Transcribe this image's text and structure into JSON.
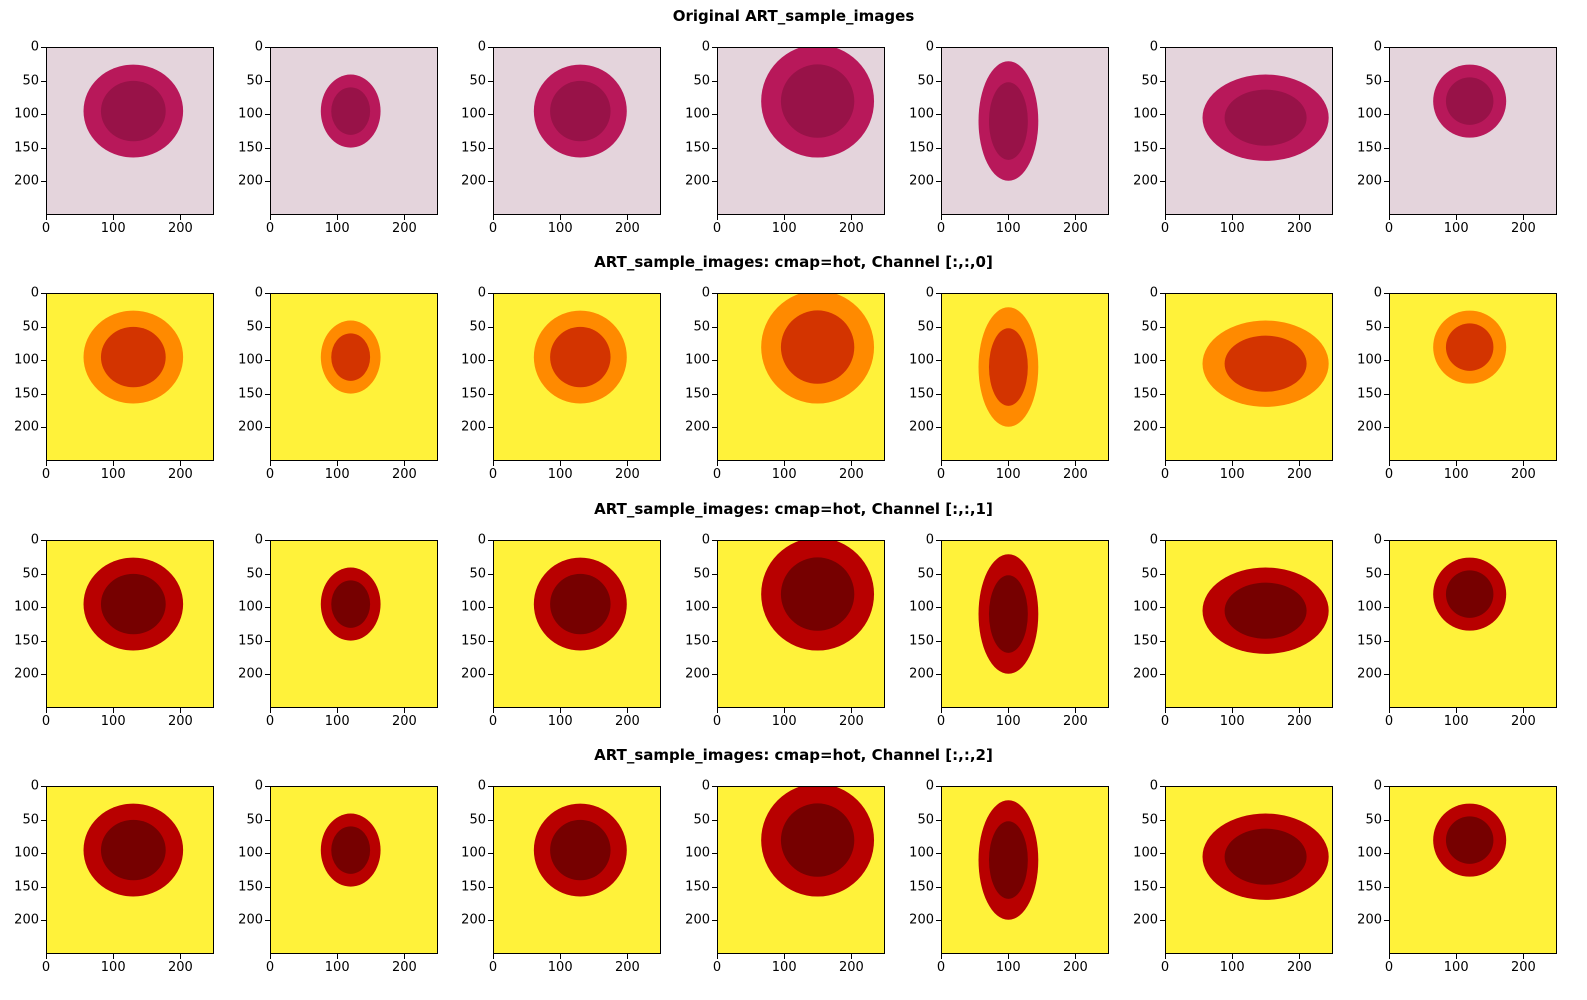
{
  "rows": [
    {
      "title": "Original ART_sample_images",
      "colormap": "original"
    },
    {
      "title": "ART_sample_images: cmap=hot, Channel [:,:,0]",
      "colormap": "hot"
    },
    {
      "title": "ART_sample_images: cmap=hot, Channel [:,:,1]",
      "colormap": "hot"
    },
    {
      "title": "ART_sample_images: cmap=hot, Channel [:,:,2]",
      "colormap": "hot"
    }
  ],
  "axes": {
    "x_ticks": [
      "0",
      "100",
      "200"
    ],
    "y_ticks": [
      "0",
      "50",
      "100",
      "150",
      "200"
    ]
  },
  "images_per_row": 7,
  "colors": {
    "original_background": "#e4d4dc",
    "original_cell": "#b8185a",
    "original_cell_dark": "#8a1040",
    "hot_background": "#fff23a",
    "hot_mid": "#ff8a00",
    "hot_dark": "#5a0000"
  }
}
